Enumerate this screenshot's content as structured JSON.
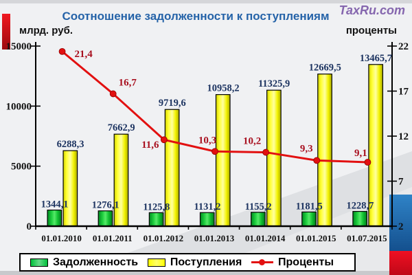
{
  "header": {
    "logo": "TaxRu.com"
  },
  "chart_data": {
    "type": "combo",
    "title": "Соотношение задолженности к поступлениям",
    "title_color": "#2563a8",
    "categories": [
      "01.01.2010",
      "01.01.2011",
      "01.01.2012",
      "01.01.2013",
      "01.01.2014",
      "01.01.2015",
      "01.07.2015"
    ],
    "series": [
      {
        "name": "Задолженность",
        "type": "bar",
        "axis": "left",
        "color": "#00c03a",
        "values": [
          1344.1,
          1276.1,
          1125.8,
          1131.2,
          1155.2,
          1181.5,
          1228.7
        ],
        "labels": [
          "1344,1",
          "1276,1",
          "1125,8",
          "1131,2",
          "1155,2",
          "1181,5",
          "1228,7"
        ]
      },
      {
        "name": "Поступления",
        "type": "bar",
        "axis": "left",
        "color": "#ffff00",
        "values": [
          6288.3,
          7662.9,
          9719.6,
          10958.2,
          11325.9,
          12669.5,
          13465.7
        ],
        "labels": [
          "6288,3",
          "7662,9",
          "9719,6",
          "10958,2",
          "11325,9",
          "12669,5",
          "13465,7"
        ]
      },
      {
        "name": "Проценты",
        "type": "line",
        "axis": "right",
        "color": "#e21010",
        "values": [
          21.4,
          16.7,
          11.6,
          10.3,
          10.2,
          9.3,
          9.1
        ],
        "labels": [
          "21,4",
          "16,7",
          "11,6",
          "10,3",
          "10,2",
          "9,3",
          "9,1"
        ]
      }
    ],
    "left_axis": {
      "title": "млрд. руб.",
      "min": 0,
      "max": 15000,
      "ticks": [
        0,
        5000,
        10000,
        15000
      ],
      "tick_labels": [
        "0",
        "5000",
        "10000",
        "15000"
      ]
    },
    "right_axis": {
      "title": "проценты",
      "min": 2,
      "max": 22,
      "ticks": [
        2,
        7,
        12,
        17,
        22
      ],
      "tick_labels": [
        "2",
        "7",
        "12",
        "17",
        "22"
      ]
    },
    "legend_position": "bottom",
    "gridlines": false,
    "value_label_color": "#1d3461",
    "percent_label_color": "#a8101f"
  }
}
